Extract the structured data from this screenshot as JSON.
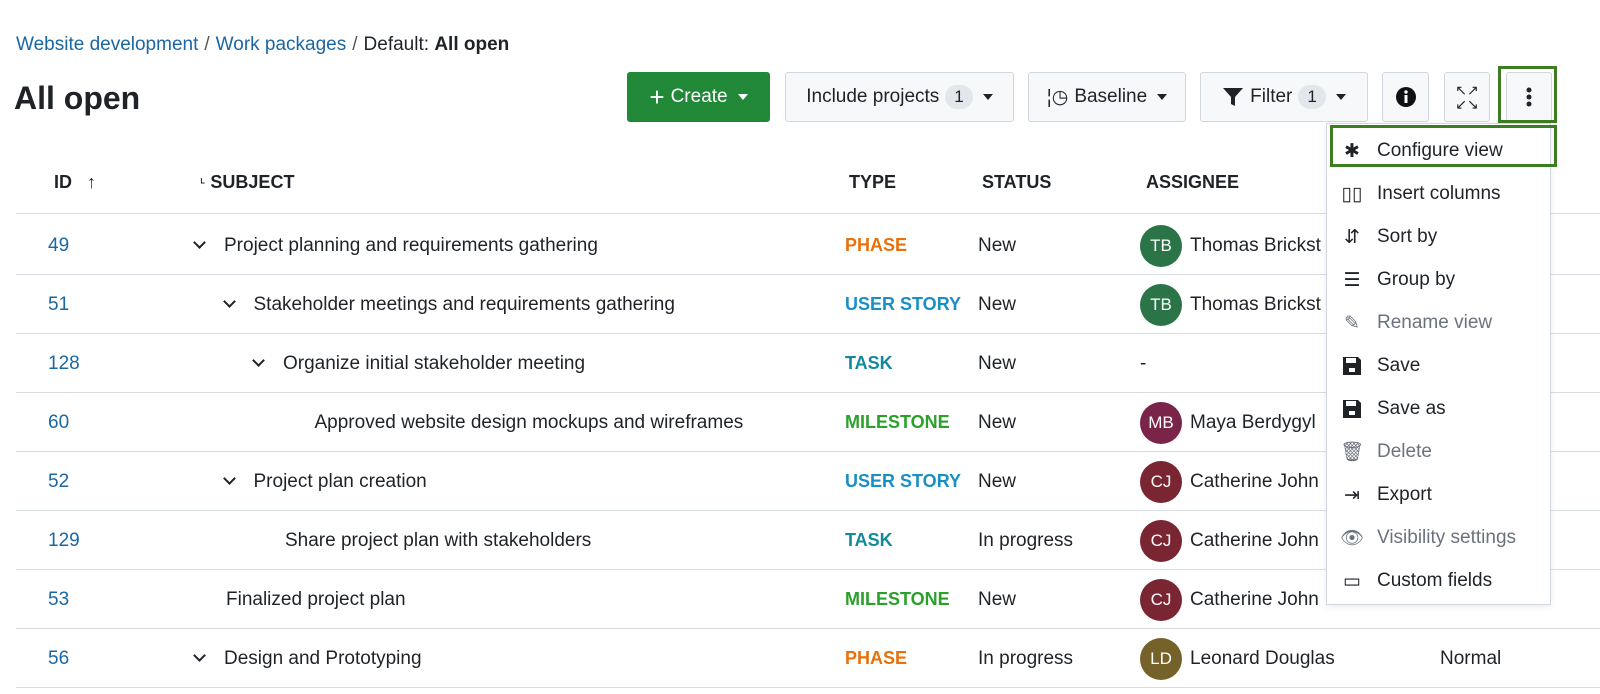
{
  "breadcrumb": {
    "items": [
      "Website development",
      "Work packages"
    ],
    "current_prefix": "Default:",
    "current": "All open"
  },
  "page_title": "All open",
  "toolbar": {
    "create": "Create",
    "include_projects": "Include projects",
    "include_projects_count": "1",
    "baseline": "Baseline",
    "filter": "Filter",
    "filter_count": "1"
  },
  "columns": {
    "id": "ID",
    "subject": "SUBJECT",
    "type": "TYPE",
    "status": "STATUS",
    "assignee": "ASSIGNEE"
  },
  "type_colors": {
    "PHASE": "#e8710a",
    "USER STORY": "#1a8fc4",
    "TASK": "#138a9c",
    "MILESTONE": "#2ba02b"
  },
  "rows": [
    {
      "id": "49",
      "subject": "Project planning and requirements gathering",
      "level": 0,
      "expand": true,
      "type": "PHASE",
      "status": "New",
      "initials": "TB",
      "assignee": "Thomas Brickst",
      "avatar": "#2a7447"
    },
    {
      "id": "51",
      "subject": "Stakeholder meetings and requirements gathering",
      "level": 1,
      "expand": true,
      "type": "USER STORY",
      "status": "New",
      "initials": "TB",
      "assignee": "Thomas Brickst",
      "avatar": "#2a7447"
    },
    {
      "id": "128",
      "subject": "Organize initial stakeholder meeting",
      "level": 2,
      "expand": true,
      "type": "TASK",
      "status": "New",
      "initials": "",
      "assignee": "-",
      "avatar": ""
    },
    {
      "id": "60",
      "subject": "Approved website design mockups and wireframes",
      "level": 3,
      "expand": false,
      "type": "MILESTONE",
      "status": "New",
      "initials": "MB",
      "assignee": "Maya Berdygyl",
      "avatar": "#7a2449"
    },
    {
      "id": "52",
      "subject": "Project plan creation",
      "level": 1,
      "expand": true,
      "type": "USER STORY",
      "status": "New",
      "initials": "CJ",
      "assignee": "Catherine John",
      "avatar": "#7a2632"
    },
    {
      "id": "129",
      "subject": "Share project plan with stakeholders",
      "level": 2,
      "expand": false,
      "type": "TASK",
      "status": "In progress",
      "initials": "CJ",
      "assignee": "Catherine John",
      "avatar": "#7a2632"
    },
    {
      "id": "53",
      "subject": "Finalized project plan",
      "level": 0,
      "expand": false,
      "type": "MILESTONE",
      "status": "New",
      "initials": "CJ",
      "assignee": "Catherine John",
      "avatar": "#7a2632"
    },
    {
      "id": "56",
      "subject": "Design and Prototyping",
      "level": 0,
      "expand": true,
      "type": "PHASE",
      "status": "In progress",
      "initials": "LD",
      "assignee": "Leonard Douglas",
      "avatar": "#75612a",
      "priority": "Normal"
    }
  ],
  "menu": [
    {
      "label": "Configure view",
      "icon": "gear-icon",
      "disabled": false
    },
    {
      "label": "Insert columns",
      "icon": "columns-icon",
      "disabled": false
    },
    {
      "label": "Sort by",
      "icon": "sort-icon",
      "disabled": false
    },
    {
      "label": "Group by",
      "icon": "group-icon",
      "disabled": false
    },
    {
      "label": "Rename view",
      "icon": "pencil-icon",
      "disabled": true
    },
    {
      "label": "Save",
      "icon": "save-icon",
      "disabled": false
    },
    {
      "label": "Save as",
      "icon": "save-icon",
      "disabled": false
    },
    {
      "label": "Delete",
      "icon": "trash-icon",
      "disabled": true
    },
    {
      "label": "Export",
      "icon": "export-icon",
      "disabled": false
    },
    {
      "label": "Visibility settings",
      "icon": "eye-icon",
      "disabled": true
    },
    {
      "label": "Custom fields",
      "icon": "custom-fields-icon",
      "disabled": false
    }
  ]
}
